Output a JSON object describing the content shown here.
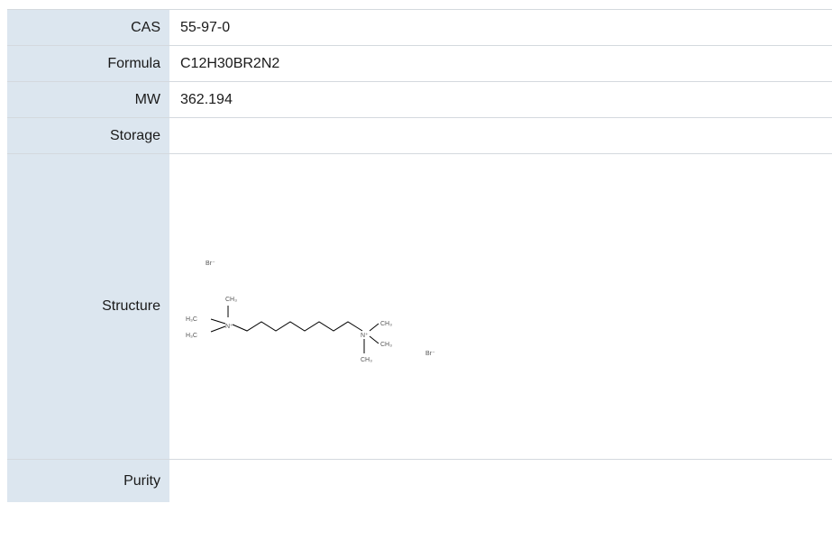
{
  "rows": [
    {
      "label": "CAS",
      "value": "55-97-0"
    },
    {
      "label": "Formula",
      "value": "C12H30BR2N2"
    },
    {
      "label": "MW",
      "value": "362.194"
    },
    {
      "label": "Storage",
      "value": ""
    },
    {
      "label": "Structure",
      "value": ""
    },
    {
      "label": "Purity",
      "value": ""
    }
  ],
  "structure": {
    "atoms": {
      "br_left": "Br⁻",
      "br_right": "Br⁻",
      "ch3_top": "CH₃",
      "h3c_upper": "H₃C",
      "h3c_lower": "H₃C",
      "n_left": "N⁺",
      "n_right": "N⁺",
      "ch3_right_upper": "CH₃",
      "ch3_right_middle": "CH₃",
      "ch3_right_lower": "CH₃"
    }
  }
}
